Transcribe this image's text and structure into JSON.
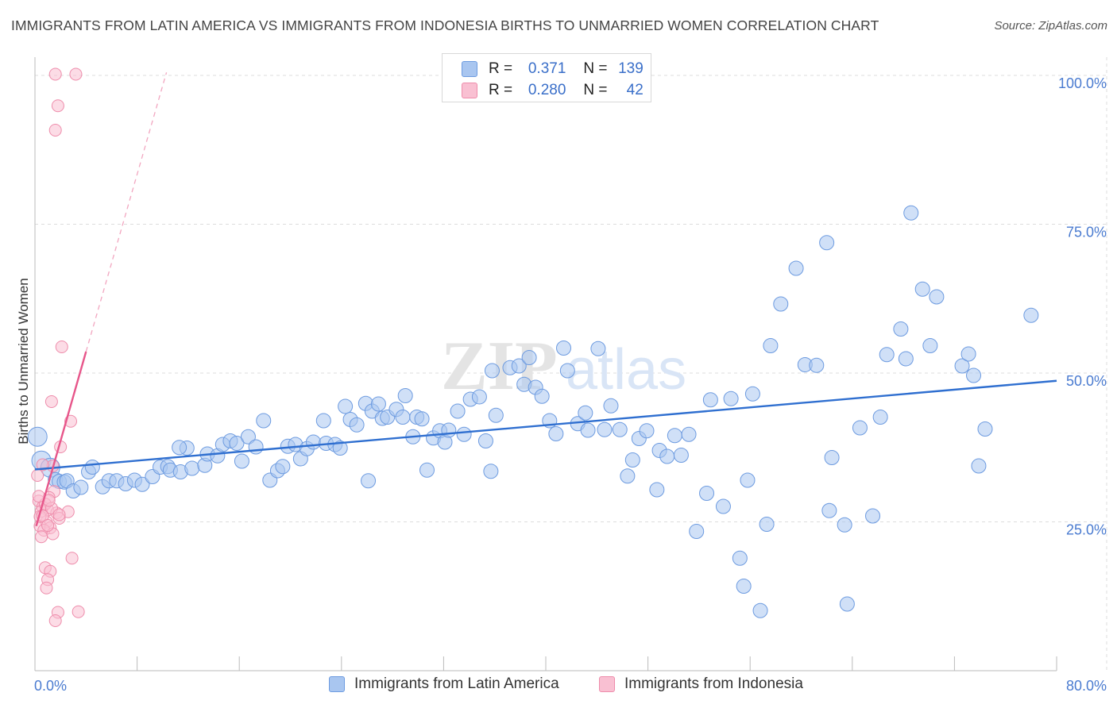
{
  "title": "IMMIGRANTS FROM LATIN AMERICA VS IMMIGRANTS FROM INDONESIA BIRTHS TO UNMARRIED WOMEN CORRELATION CHART",
  "source": "Source: ZipAtlas.com",
  "watermark": {
    "zip": "ZIP",
    "atlas": "atlas"
  },
  "legend_stats": [
    {
      "r_label": "R =",
      "r_value": "0.371",
      "n_label": "N =",
      "n_value": "139",
      "color": "#a9c6f0",
      "border": "#6d9be0"
    },
    {
      "r_label": "R =",
      "r_value": "0.280",
      "n_label": "N =",
      "n_value": "42",
      "color": "#f9c0d2",
      "border": "#ee8cab"
    }
  ],
  "chart_data": {
    "type": "scatter",
    "title": "IMMIGRANTS FROM LATIN AMERICA VS IMMIGRANTS FROM INDONESIA BIRTHS TO UNMARRIED WOMEN CORRELATION CHART",
    "xlabel": "",
    "ylabel": "Births to Unmarried Women",
    "xlim": [
      0,
      80
    ],
    "ylim": [
      0,
      102
    ],
    "x_tick_labels": [
      "0.0%",
      "80.0%"
    ],
    "y_ticks": [
      25,
      50,
      75,
      100
    ],
    "y_tick_labels": [
      "25.0%",
      "50.0%",
      "75.0%",
      "100.0%"
    ],
    "grid": true,
    "legend_position": "bottom",
    "series": [
      {
        "name": "Immigrants from Latin America",
        "color": "#a9c6f0",
        "stroke": "#6d9be0",
        "trend_color": "#2f6fd0",
        "trend": [
          [
            0,
            33.8
          ],
          [
            80,
            48.7
          ]
        ],
        "points": [
          [
            0.2,
            39.3
          ],
          [
            0.5,
            35.3
          ],
          [
            1.2,
            34.1
          ],
          [
            1.6,
            32.1
          ],
          [
            1.9,
            31.8
          ],
          [
            2.3,
            31.7
          ],
          [
            2.5,
            31.9
          ],
          [
            3.0,
            30.2
          ],
          [
            3.6,
            30.8
          ],
          [
            4.2,
            33.4
          ],
          [
            4.5,
            34.2
          ],
          [
            5.3,
            30.9
          ],
          [
            5.8,
            31.9
          ],
          [
            6.4,
            31.9
          ],
          [
            7.1,
            31.4
          ],
          [
            7.8,
            32.0
          ],
          [
            8.4,
            31.3
          ],
          [
            9.2,
            32.6
          ],
          [
            9.8,
            34.2
          ],
          [
            10.4,
            34.3
          ],
          [
            10.6,
            33.7
          ],
          [
            11.4,
            33.4
          ],
          [
            11.9,
            37.4
          ],
          [
            12.3,
            34.0
          ],
          [
            13.3,
            34.5
          ],
          [
            13.5,
            36.4
          ],
          [
            14.3,
            36.1
          ],
          [
            14.7,
            38.0
          ],
          [
            15.3,
            38.6
          ],
          [
            15.8,
            38.2
          ],
          [
            16.2,
            35.2
          ],
          [
            16.7,
            39.3
          ],
          [
            17.3,
            37.6
          ],
          [
            17.9,
            42.0
          ],
          [
            18.4,
            32.0
          ],
          [
            19.0,
            33.6
          ],
          [
            19.4,
            34.3
          ],
          [
            19.8,
            37.7
          ],
          [
            20.4,
            38.0
          ],
          [
            20.8,
            35.6
          ],
          [
            21.3,
            37.3
          ],
          [
            21.8,
            38.4
          ],
          [
            22.6,
            42.0
          ],
          [
            22.8,
            38.2
          ],
          [
            23.5,
            38.0
          ],
          [
            23.9,
            37.4
          ],
          [
            24.3,
            44.4
          ],
          [
            24.7,
            42.2
          ],
          [
            25.2,
            41.3
          ],
          [
            25.9,
            44.9
          ],
          [
            26.4,
            43.6
          ],
          [
            26.9,
            44.8
          ],
          [
            27.2,
            42.4
          ],
          [
            27.6,
            42.6
          ],
          [
            28.3,
            43.9
          ],
          [
            28.8,
            42.6
          ],
          [
            29.0,
            46.2
          ],
          [
            29.9,
            42.6
          ],
          [
            30.3,
            42.3
          ],
          [
            31.2,
            39.1
          ],
          [
            31.7,
            40.3
          ],
          [
            32.1,
            38.4
          ],
          [
            32.4,
            40.4
          ],
          [
            33.1,
            43.6
          ],
          [
            33.6,
            39.7
          ],
          [
            34.1,
            45.6
          ],
          [
            34.8,
            46.0
          ],
          [
            35.3,
            38.6
          ],
          [
            35.7,
            33.5
          ],
          [
            36.1,
            42.9
          ],
          [
            35.8,
            50.4
          ],
          [
            37.2,
            50.9
          ],
          [
            37.9,
            51.2
          ],
          [
            38.3,
            48.1
          ],
          [
            38.7,
            52.6
          ],
          [
            39.2,
            47.6
          ],
          [
            39.7,
            46.1
          ],
          [
            40.3,
            42.0
          ],
          [
            40.8,
            39.8
          ],
          [
            41.4,
            54.2
          ],
          [
            41.7,
            50.4
          ],
          [
            42.5,
            41.5
          ],
          [
            43.1,
            43.3
          ],
          [
            43.3,
            40.4
          ],
          [
            44.1,
            54.1
          ],
          [
            44.6,
            40.5
          ],
          [
            45.1,
            44.5
          ],
          [
            45.8,
            40.5
          ],
          [
            46.4,
            32.7
          ],
          [
            46.8,
            35.4
          ],
          [
            47.3,
            39.0
          ],
          [
            47.9,
            40.3
          ],
          [
            48.7,
            30.4
          ],
          [
            48.9,
            37.0
          ],
          [
            49.5,
            36.0
          ],
          [
            50.1,
            39.5
          ],
          [
            50.6,
            36.2
          ],
          [
            51.2,
            39.7
          ],
          [
            51.8,
            23.4
          ],
          [
            52.6,
            29.8
          ],
          [
            52.9,
            45.5
          ],
          [
            53.9,
            27.6
          ],
          [
            54.5,
            45.7
          ],
          [
            55.2,
            18.9
          ],
          [
            55.8,
            32.0
          ],
          [
            56.2,
            46.5
          ],
          [
            56.8,
            10.1
          ],
          [
            57.3,
            24.6
          ],
          [
            57.6,
            54.6
          ],
          [
            58.4,
            61.6
          ],
          [
            59.6,
            67.6
          ],
          [
            60.3,
            51.4
          ],
          [
            61.2,
            51.3
          ],
          [
            62.0,
            71.9
          ],
          [
            62.2,
            26.9
          ],
          [
            62.4,
            35.8
          ],
          [
            63.4,
            24.5
          ],
          [
            64.6,
            40.8
          ],
          [
            65.6,
            26.0
          ],
          [
            66.2,
            42.6
          ],
          [
            66.7,
            53.1
          ],
          [
            67.8,
            57.4
          ],
          [
            68.2,
            52.4
          ],
          [
            68.6,
            76.9
          ],
          [
            69.5,
            64.1
          ],
          [
            70.1,
            54.6
          ],
          [
            70.6,
            62.8
          ],
          [
            72.6,
            51.2
          ],
          [
            73.1,
            53.2
          ],
          [
            73.5,
            49.6
          ],
          [
            73.9,
            34.4
          ],
          [
            74.4,
            40.6
          ],
          [
            78.0,
            59.7
          ],
          [
            55.5,
            14.2
          ],
          [
            63.6,
            11.2
          ],
          [
            29.6,
            39.3
          ],
          [
            11.3,
            37.5
          ],
          [
            26.1,
            31.9
          ],
          [
            30.7,
            33.7
          ]
        ]
      },
      {
        "name": "Immigrants from Indonesia",
        "color": "#f9c0d2",
        "stroke": "#ee8cab",
        "trend_color": "#e7568a",
        "trend": [
          [
            0.1,
            24.3
          ],
          [
            4.0,
            53.6
          ]
        ],
        "trend_dashed": [
          [
            4.0,
            53.6
          ],
          [
            10.3,
            100.5
          ]
        ],
        "points": [
          [
            1.6,
            100.2
          ],
          [
            3.2,
            100.2
          ],
          [
            1.8,
            94.9
          ],
          [
            1.6,
            90.8
          ],
          [
            2.1,
            54.4
          ],
          [
            1.3,
            45.2
          ],
          [
            2.8,
            41.9
          ],
          [
            2.0,
            37.6
          ],
          [
            1.4,
            34.4
          ],
          [
            0.6,
            34.6
          ],
          [
            1.5,
            30.1
          ],
          [
            1.1,
            29.1
          ],
          [
            0.3,
            28.5
          ],
          [
            0.6,
            27.5
          ],
          [
            1.0,
            27.0
          ],
          [
            0.5,
            26.8
          ],
          [
            1.7,
            26.5
          ],
          [
            2.6,
            26.7
          ],
          [
            1.9,
            25.6
          ],
          [
            0.9,
            25.0
          ],
          [
            0.4,
            24.3
          ],
          [
            1.2,
            24.0
          ],
          [
            0.7,
            23.6
          ],
          [
            1.4,
            23.0
          ],
          [
            0.5,
            22.5
          ],
          [
            2.9,
            18.9
          ],
          [
            0.8,
            17.3
          ],
          [
            1.2,
            16.7
          ],
          [
            1.0,
            15.3
          ],
          [
            0.9,
            13.9
          ],
          [
            1.8,
            9.8
          ],
          [
            1.6,
            8.4
          ],
          [
            3.4,
            9.9
          ],
          [
            0.8,
            28.0
          ],
          [
            1.3,
            27.3
          ],
          [
            0.4,
            25.9
          ],
          [
            1.1,
            28.6
          ],
          [
            0.2,
            32.8
          ],
          [
            0.3,
            29.3
          ],
          [
            1.9,
            26.2
          ],
          [
            0.6,
            26.0
          ],
          [
            1.0,
            24.4
          ]
        ]
      }
    ]
  }
}
